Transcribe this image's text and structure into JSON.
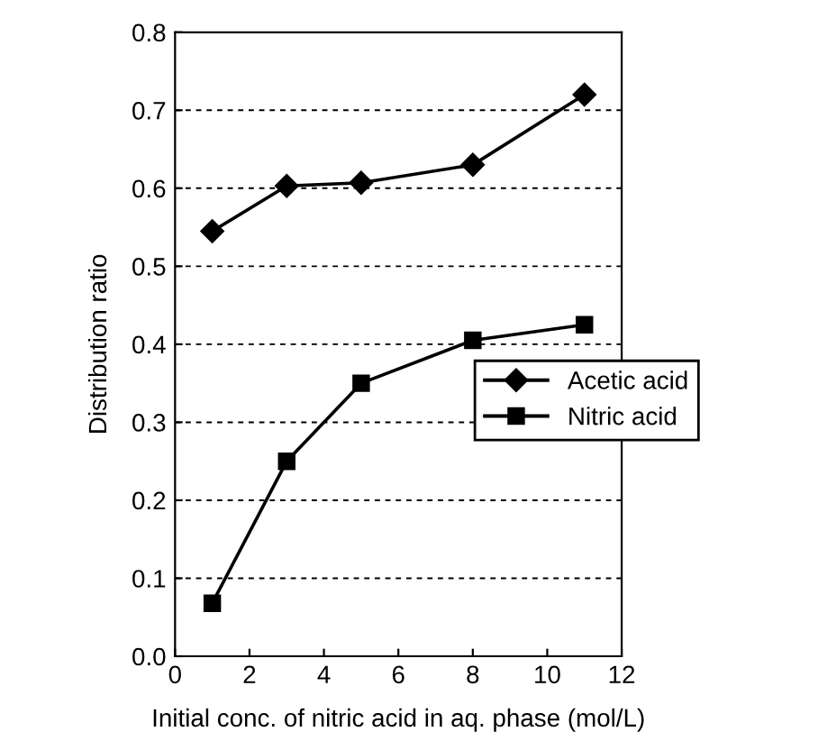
{
  "chart_data": {
    "type": "line",
    "xlabel": "Initial conc. of nitric acid in aq. phase (mol/L)",
    "ylabel": "Distribution ratio",
    "x": [
      1,
      3,
      5,
      8,
      11
    ],
    "series": [
      {
        "name": "Acetic acid",
        "color": "#000000",
        "marker": "diamond",
        "values": [
          0.545,
          0.603,
          0.607,
          0.63,
          0.72
        ]
      },
      {
        "name": "Nitric acid",
        "color": "#000000",
        "marker": "square",
        "values": [
          0.068,
          0.25,
          0.35,
          0.405,
          0.425
        ]
      }
    ],
    "xlim": [
      0,
      12
    ],
    "xticks": [
      0,
      2,
      4,
      6,
      8,
      10,
      12
    ],
    "ylim": [
      0,
      0.8
    ],
    "yticks": [
      {
        "value": 0,
        "label": "0.0"
      },
      0.1,
      0.2,
      0.3,
      0.4,
      0.5,
      0.6,
      0.7,
      0.8
    ],
    "grid": "y",
    "legend": "right",
    "line_style": "solid"
  }
}
